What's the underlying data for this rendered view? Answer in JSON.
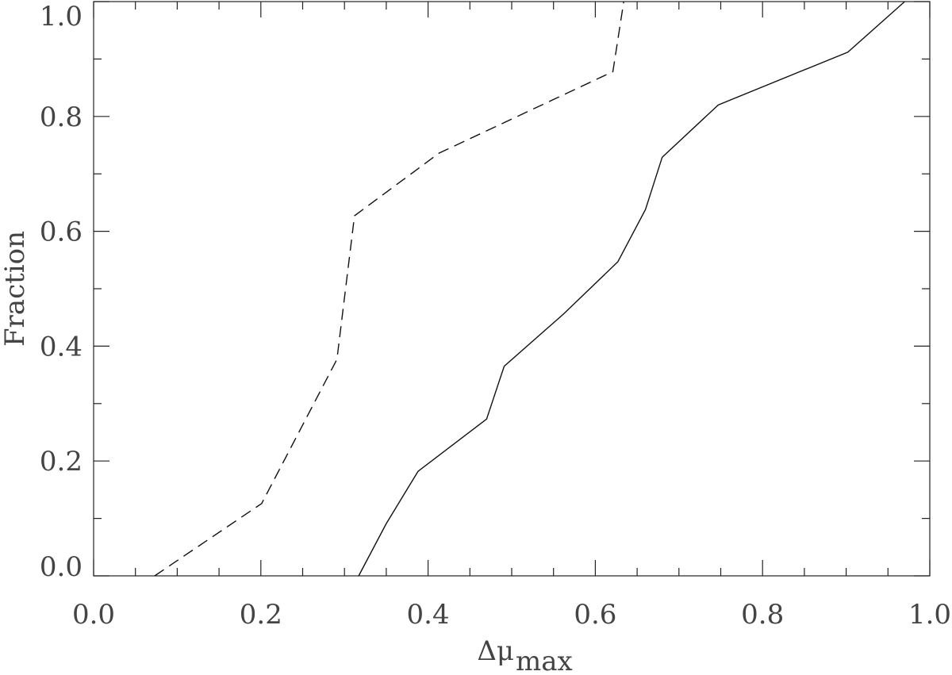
{
  "chart_data": {
    "type": "line",
    "ylabel": "Fraction",
    "xlabel": {
      "text": "Δμ",
      "subscript": "max"
    },
    "xlim": [
      0,
      1
    ],
    "ylim": [
      0,
      1
    ],
    "xticks": [
      {
        "value": 0,
        "label": "0.0"
      },
      0.2,
      0.4,
      0.6,
      0.8,
      {
        "value": 1,
        "label": "1.0"
      }
    ],
    "yticks": [
      {
        "value": 0,
        "label": "0.0"
      },
      0.2,
      0.4,
      0.6,
      0.8,
      {
        "value": 1,
        "label": "1.0"
      }
    ],
    "xminor": [
      0.05,
      0.1,
      0.15,
      0.25,
      0.3,
      0.35,
      0.45,
      0.5,
      0.55,
      0.65,
      0.7,
      0.75,
      0.85,
      0.9,
      0.95
    ],
    "yminor": [
      0.1,
      0.3,
      0.5,
      0.7,
      0.9
    ],
    "series": [
      {
        "color": "#111",
        "dash": false,
        "x": [
          0.317,
          0.35,
          0.388,
          0.47,
          0.491,
          0.562,
          0.627,
          0.66,
          0.68,
          0.747,
          0.902,
          0.97
        ],
        "values": [
          0,
          0.091,
          0.182,
          0.273,
          0.365,
          0.456,
          0.547,
          0.638,
          0.729,
          0.82,
          0.912,
          1.0
        ]
      },
      {
        "color": "#111",
        "dash": true,
        "x": [
          0.073,
          0.201,
          0.291,
          0.312,
          0.413,
          0.621,
          0.634
        ],
        "values": [
          0,
          0.126,
          0.377,
          0.627,
          0.736,
          0.878,
          1.0
        ]
      }
    ]
  }
}
